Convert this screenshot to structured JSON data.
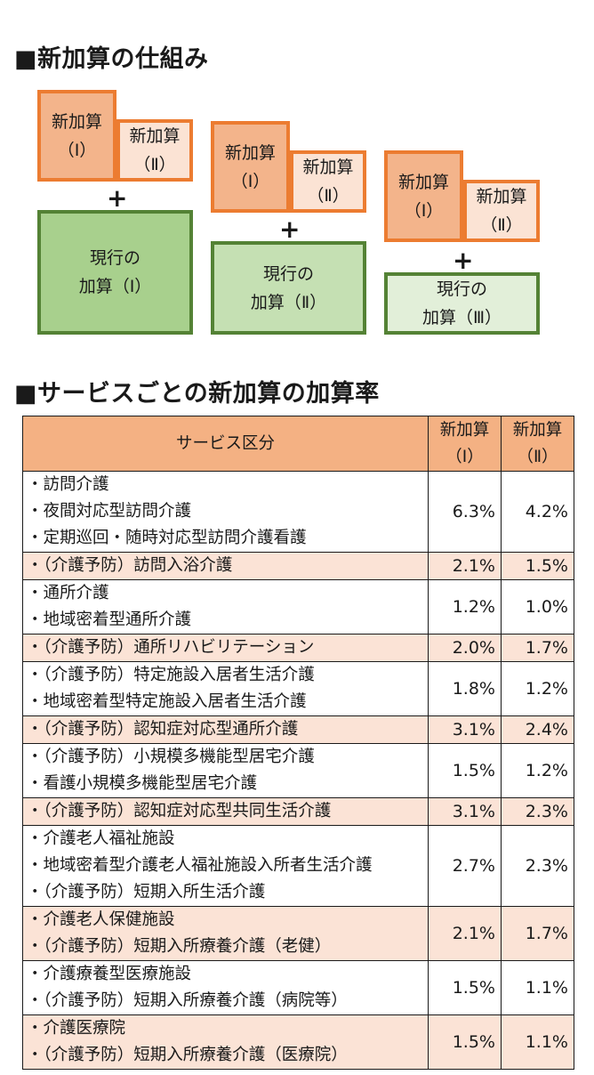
{
  "section1": {
    "title": "■新加算の仕組み",
    "groups": [
      {
        "new1": [
          "新加算",
          "（Ⅰ）"
        ],
        "new2": [
          "新加算",
          "（Ⅱ）"
        ],
        "plus": "+",
        "current": [
          "現行の",
          "加算（Ⅰ）"
        ]
      },
      {
        "new1": [
          "新加算",
          "（Ⅰ）"
        ],
        "new2": [
          "新加算",
          "（Ⅱ）"
        ],
        "plus": "+",
        "current": [
          "現行の",
          "加算（Ⅱ）"
        ]
      },
      {
        "new1": [
          "新加算",
          "（Ⅰ）"
        ],
        "new2": [
          "新加算",
          "（Ⅱ）"
        ],
        "plus": "+",
        "current": [
          "現行の",
          "加算（Ⅲ）"
        ]
      }
    ]
  },
  "section2": {
    "title": "■サービスごとの新加算の加算率",
    "headers": {
      "service": "サービス区分",
      "col1": [
        "新加算",
        "（Ⅰ）"
      ],
      "col2": [
        "新加算",
        "（Ⅱ）"
      ]
    },
    "rows": [
      {
        "services": [
          "・訪問介護",
          "・夜間対応型訪問介護",
          "・定期巡回・随時対応型訪問介護看護"
        ],
        "rate1": "6.3%",
        "rate2": "4.2%"
      },
      {
        "services": [
          "・（介護予防）訪問入浴介護"
        ],
        "rate1": "2.1%",
        "rate2": "1.5%"
      },
      {
        "services": [
          "・通所介護",
          "・地域密着型通所介護"
        ],
        "rate1": "1.2%",
        "rate2": "1.0%"
      },
      {
        "services": [
          "・（介護予防）通所リハビリテーション"
        ],
        "rate1": "2.0%",
        "rate2": "1.7%"
      },
      {
        "services": [
          "・（介護予防）特定施設入居者生活介護",
          "・地域密着型特定施設入居者生活介護"
        ],
        "rate1": "1.8%",
        "rate2": "1.2%"
      },
      {
        "services": [
          "・（介護予防）認知症対応型通所介護"
        ],
        "rate1": "3.1%",
        "rate2": "2.4%"
      },
      {
        "services": [
          "・（介護予防）小規模多機能型居宅介護",
          "・看護小規模多機能型居宅介護"
        ],
        "rate1": "1.5%",
        "rate2": "1.2%"
      },
      {
        "services": [
          "・（介護予防）認知症対応型共同生活介護"
        ],
        "rate1": "3.1%",
        "rate2": "2.3%"
      },
      {
        "services": [
          "・介護老人福祉施設",
          "・地域密着型介護老人福祉施設入所者生活介護",
          "・（介護予防）短期入所生活介護"
        ],
        "rate1": "2.7%",
        "rate2": "2.3%"
      },
      {
        "services": [
          "・介護老人保健施設",
          "・（介護予防）短期入所療養介護（老健）"
        ],
        "rate1": "2.1%",
        "rate2": "1.7%"
      },
      {
        "services": [
          "・介護療養型医療施設",
          "・（介護予防）短期入所療養介護（病院等）"
        ],
        "rate1": "1.5%",
        "rate2": "1.1%"
      },
      {
        "services": [
          "・介護医療院",
          "・（介護予防）短期入所療養介護（医療院）"
        ],
        "rate1": "1.5%",
        "rate2": "1.1%"
      }
    ]
  },
  "colors": {
    "orange_border": "#ec7c31",
    "orange_fill": "#f3b48b",
    "orange_light": "#fbe3d4",
    "green_border": "#548235",
    "table_header": "#f4b183",
    "row_highlight": "#fbe3d6"
  }
}
